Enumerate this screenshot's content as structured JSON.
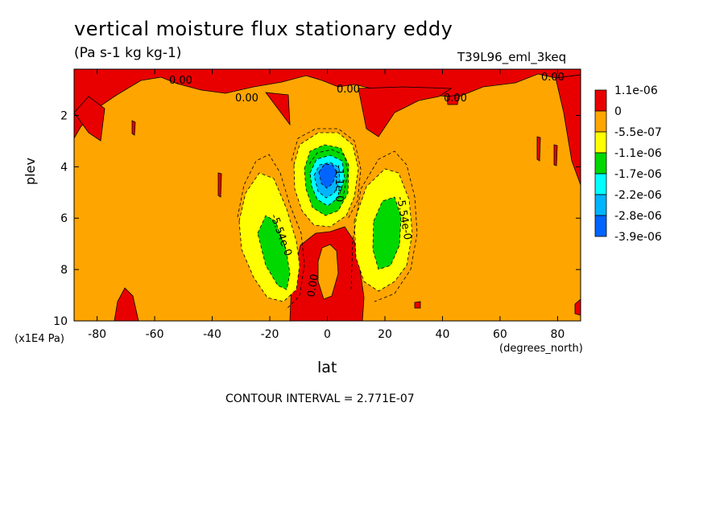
{
  "chart_data": {
    "type": "heatmap",
    "title": "vertical moisture flux stationary eddy",
    "units": "(Pa s-1 kg kg-1)",
    "run_label": "T39L96_eml_3keq",
    "xlabel": "lat",
    "x_units": "(degrees_north)",
    "ylabel": "plev",
    "y_units": "(x1E4 Pa)",
    "xlim": [
      -88,
      88
    ],
    "ylim": [
      10,
      0.2
    ],
    "x_ticks": [
      -80,
      -60,
      -40,
      -20,
      0,
      20,
      40,
      60,
      80
    ],
    "y_ticks": [
      2,
      4,
      6,
      8,
      10
    ],
    "contour_interval": "CONTOUR INTERVAL = 2.771E-07",
    "contour_labels": [
      "0.00",
      "0.00",
      "0.00",
      "0.00",
      "0.00",
      "0.00",
      "-5.54e-0",
      "-5.54e-0",
      "-1.1e-0",
      "0.00"
    ],
    "legend": [
      {
        "label": "1.1e-06",
        "color": "#e80000"
      },
      {
        "label": "0",
        "color": "#ffa500"
      },
      {
        "label": "-5.5e-07",
        "color": "#ffff00"
      },
      {
        "label": "-1.1e-06",
        "color": "#00d800"
      },
      {
        "label": "-1.7e-06",
        "color": "#00ffff"
      },
      {
        "label": "-2.2e-06",
        "color": "#00b4ff"
      },
      {
        "label": "-2.8e-06",
        "color": "#0064ff"
      },
      {
        "label": "-3.9e-06",
        "color": "#0050ff"
      }
    ],
    "legend_placement": "right",
    "colors": {
      "positive": "#e80000",
      "background": "#ffa500",
      "yellow": "#ffff00",
      "green": "#00d800",
      "cyan": "#00ffff",
      "lightblue": "#00b4ff",
      "blue": "#0064ff"
    },
    "features": [
      {
        "name": "equatorial ascent minimum",
        "lat": 0,
        "plev_center": 4.3,
        "min_value": "-3.9e-06"
      },
      {
        "name": "southern subtropical minimum",
        "lat": -18,
        "plev_center": 6.8,
        "min_value": "-1.7e-06"
      },
      {
        "name": "northern subtropical minimum",
        "lat": 20,
        "plev_center": 6.3,
        "min_value": "-1.7e-06"
      },
      {
        "name": "near-surface equatorial maximum",
        "lat": 0,
        "plev_center": 8.5,
        "max_value": "1.1e-06"
      }
    ]
  }
}
